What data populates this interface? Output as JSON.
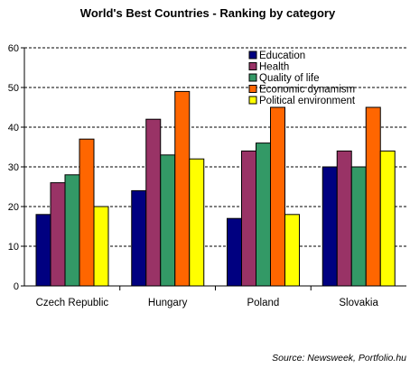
{
  "chart_data": {
    "type": "bar",
    "title": "World's Best Countries - Ranking by category",
    "xlabel": "",
    "ylabel": "",
    "ylim": [
      0,
      60
    ],
    "yticks": [
      0,
      10,
      20,
      30,
      40,
      50,
      60
    ],
    "grid": true,
    "legend_position": "top-right",
    "categories": [
      "Czech Republic",
      "Hungary",
      "Poland",
      "Slovakia"
    ],
    "series": [
      {
        "name": "Education",
        "color": "#000080",
        "values": [
          18,
          24,
          17,
          30
        ]
      },
      {
        "name": "Health",
        "color": "#993366",
        "values": [
          26,
          42,
          34,
          34
        ]
      },
      {
        "name": "Quality of life",
        "color": "#339966",
        "values": [
          28,
          33,
          36,
          30
        ]
      },
      {
        "name": "Economic dynamism",
        "color": "#FF6600",
        "values": [
          37,
          49,
          45,
          45
        ]
      },
      {
        "name": "Political environment",
        "color": "#FFFF00",
        "values": [
          20,
          32,
          18,
          34
        ]
      }
    ]
  },
  "source": "Source: Newsweek, Portfolio.hu"
}
